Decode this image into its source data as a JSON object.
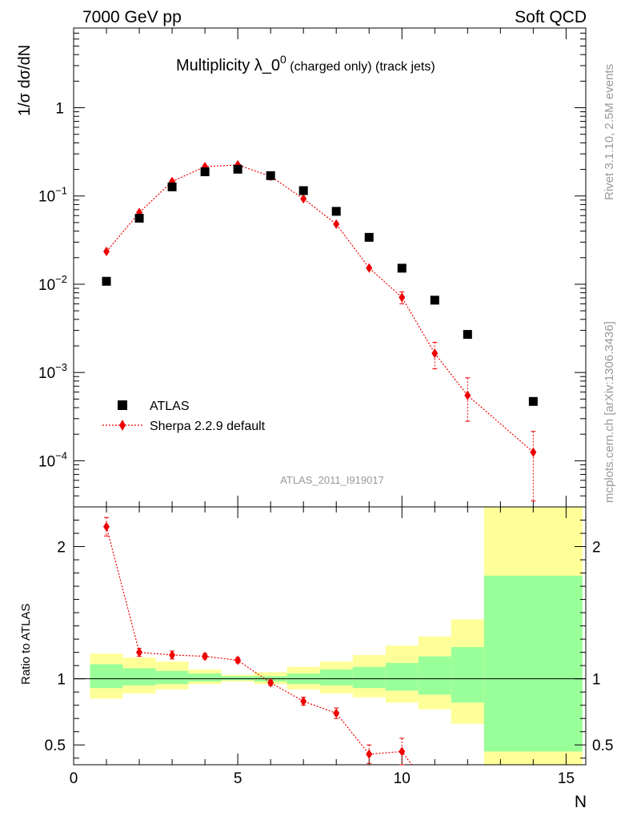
{
  "header": {
    "left": "7000 GeV pp",
    "right": "Soft QCD"
  },
  "side": {
    "rivet": "Rivet 3.1.10,  2.5M events",
    "mcplots": "mcplots.cern.ch [arXiv:1306.3436]"
  },
  "chart_data": {
    "type": "scatter",
    "title_main": "Multiplicity λ_0",
    "title_sup": "0",
    "title_rest": " (charged only) (track jets)",
    "ylabel": "1/σ dσ/dN",
    "ylabel_ratio": "Ratio to ATLAS",
    "xlabel": "N",
    "analysis_id": "ATLAS_2011_I919017",
    "xlim": [
      0,
      15.6
    ],
    "ylim_log": [
      3e-05,
      8
    ],
    "ylim_ratio": [
      0.35,
      2.3
    ],
    "y_ticks": [
      {
        "value": 1,
        "label": "1"
      },
      {
        "value": 0.1,
        "label": "10",
        "exp": "−1"
      },
      {
        "value": 0.01,
        "label": "10",
        "exp": "−2"
      },
      {
        "value": 0.001,
        "label": "10",
        "exp": "−3"
      },
      {
        "value": 0.0001,
        "label": "10",
        "exp": "−4"
      }
    ],
    "x_ticks": [
      {
        "value": 0,
        "label": "0"
      },
      {
        "value": 5,
        "label": "5"
      },
      {
        "value": 10,
        "label": "10"
      },
      {
        "value": 15,
        "label": "15"
      }
    ],
    "ratio_ticks": [
      {
        "value": 2,
        "label": "2"
      },
      {
        "value": 1,
        "label": "1"
      },
      {
        "value": 0.5,
        "label": "0.5"
      }
    ],
    "legend": {
      "data_label": "ATLAS",
      "mc_label": "Sherpa 2.2.9 default",
      "position": "bottom-left"
    },
    "atlas": {
      "x": [
        1,
        2,
        3,
        4,
        5,
        6,
        7,
        8,
        9,
        10,
        11,
        12,
        14
      ],
      "y": [
        0.0108,
        0.056,
        0.127,
        0.188,
        0.201,
        0.17,
        0.115,
        0.067,
        0.034,
        0.0152,
        0.0066,
        0.0027,
        0.00047
      ]
    },
    "sherpa": {
      "x": [
        1,
        2,
        3,
        4,
        5,
        6,
        7,
        8,
        9,
        10,
        11,
        12,
        14
      ],
      "y": [
        0.0235,
        0.065,
        0.146,
        0.215,
        0.225,
        0.167,
        0.093,
        0.048,
        0.0153,
        0.0071,
        0.00165,
        0.00055,
        0.000125
      ],
      "err_lo": [
        0.0008,
        0.002,
        0.004,
        0.005,
        0.005,
        0.004,
        0.003,
        0.002,
        0.0011,
        0.0011,
        0.00055,
        0.00027,
        9e-05
      ],
      "err_hi": [
        0.0008,
        0.002,
        0.004,
        0.005,
        0.005,
        0.004,
        0.003,
        0.002,
        0.0011,
        0.0011,
        0.00055,
        0.00032,
        9e-05
      ]
    },
    "ratio": {
      "x": [
        1,
        2,
        3,
        4,
        5,
        6,
        7,
        8,
        9,
        10
      ],
      "y": [
        2.15,
        1.2,
        1.18,
        1.17,
        1.14,
        0.97,
        0.83,
        0.74,
        0.43,
        0.45
      ],
      "err": [
        0.07,
        0.03,
        0.03,
        0.02,
        0.02,
        0.02,
        0.03,
        0.04,
        0.07,
        0.1
      ]
    },
    "ratio_tail_to": {
      "x": 10.3,
      "y": 0.3
    },
    "bands": {
      "edges": [
        0.5,
        1.5,
        2.5,
        3.5,
        4.5,
        5.5,
        6.5,
        7.5,
        8.5,
        9.5,
        10.5,
        11.5,
        12.5,
        15.5
      ],
      "yellow_lo": [
        0.85,
        0.89,
        0.92,
        0.96,
        0.98,
        0.96,
        0.92,
        0.89,
        0.86,
        0.82,
        0.77,
        0.66,
        0.35
      ],
      "yellow_hi": [
        1.19,
        1.16,
        1.13,
        1.07,
        1.03,
        1.05,
        1.09,
        1.13,
        1.18,
        1.25,
        1.32,
        1.45,
        2.3
      ],
      "green_lo": [
        0.93,
        0.95,
        0.96,
        0.98,
        0.99,
        0.98,
        0.96,
        0.95,
        0.93,
        0.91,
        0.88,
        0.82,
        0.45
      ],
      "green_hi": [
        1.11,
        1.08,
        1.06,
        1.04,
        1.02,
        1.02,
        1.04,
        1.07,
        1.09,
        1.12,
        1.17,
        1.24,
        1.78
      ]
    },
    "colors": {
      "data": "#000000",
      "mc": "#ee0000",
      "yellow_band": "#ffff99",
      "green_band": "#99ff99"
    }
  }
}
